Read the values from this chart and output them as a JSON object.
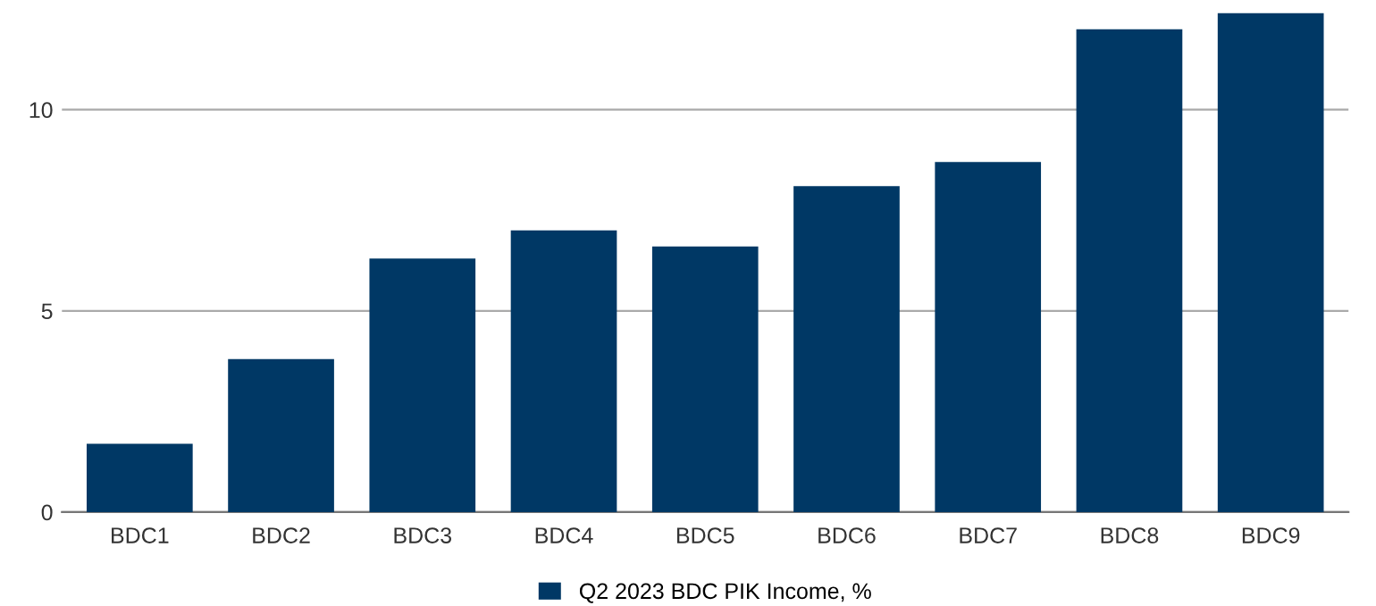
{
  "chart_data": {
    "type": "bar",
    "categories": [
      "BDC1",
      "BDC2",
      "BDC3",
      "BDC4",
      "BDC5",
      "BDC6",
      "BDC7",
      "BDC8",
      "BDC9"
    ],
    "series": [
      {
        "name": "Q2 2023 BDC PIK Income, %",
        "color": "#003865",
        "values": [
          1.7,
          3.8,
          6.3,
          7.0,
          6.6,
          8.1,
          8.7,
          12.0,
          12.4
        ]
      }
    ],
    "ylim": [
      0,
      12.5
    ],
    "yticks": [
      0,
      5,
      10
    ],
    "grid": "y",
    "legend": "bottom"
  }
}
